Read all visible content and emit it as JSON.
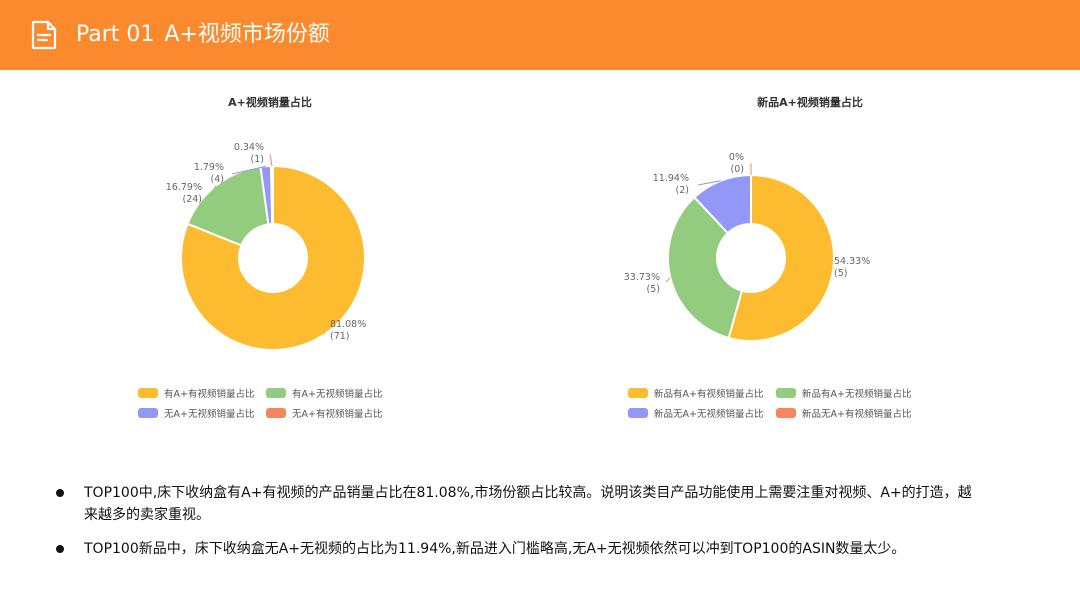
{
  "header": {
    "part": "Part 01",
    "title": "A+视频市场份额",
    "icon": "document-icon",
    "background_color": "#fb8a2e"
  },
  "charts": [
    {
      "title": "A+视频销量占比",
      "chart_data": {
        "type": "pie",
        "title": "A+视频销量占比",
        "slices": [
          {
            "name": "有A+有视频销量占比",
            "percent_label": "81.08%",
            "count_label": "(71)",
            "value": 71,
            "color": "#fdbb2f"
          },
          {
            "name": "有A+无视频销量占比",
            "percent_label": "16.79%",
            "count_label": "(24)",
            "value": 14.7,
            "color": "#93cb7f"
          },
          {
            "name": "无A+无视频销量占比",
            "percent_label": "1.79%",
            "count_label": "(4)",
            "value": 1.6,
            "color": "#9397f8"
          },
          {
            "name": "无A+有视频销量占比",
            "percent_label": "0.34%",
            "count_label": "(1)",
            "value": 0.3,
            "color": "#f6865f"
          }
        ],
        "legend_position": "bottom"
      }
    },
    {
      "title": "新品A+视频销量占比",
      "chart_data": {
        "type": "pie",
        "title": "新品A+视频销量占比",
        "slices": [
          {
            "name": "新品有A+有视频销量占比",
            "percent_label": "54.33%",
            "count_label": "(5)",
            "value": 54.33,
            "color": "#fdbb2f"
          },
          {
            "name": "新品有A+无视频销量占比",
            "percent_label": "33.73%",
            "count_label": "(5)",
            "value": 33.73,
            "color": "#93cb7f"
          },
          {
            "name": "新品无A+无视频销量占比",
            "percent_label": "11.94%",
            "count_label": "(2)",
            "value": 11.94,
            "color": "#9397f8"
          },
          {
            "name": "新品无A+有视频销量占比",
            "percent_label": "0%",
            "count_label": "(0)",
            "value": 0,
            "color": "#f6865f"
          }
        ],
        "legend_position": "bottom"
      }
    }
  ],
  "notes": [
    "TOP100中,床下收纳盒有A+有视频的产品销量占比在81.08%,市场份额占比较高。说明该类目产品功能使用上需要注重对视频、A+的打造，越来越多的卖家重视。",
    "TOP100新品中，床下收纳盒无A+无视频的占比为11.94%,新品进入门槛略高,无A+无视频依然可以冲到TOP100的ASIN数量太少。"
  ]
}
